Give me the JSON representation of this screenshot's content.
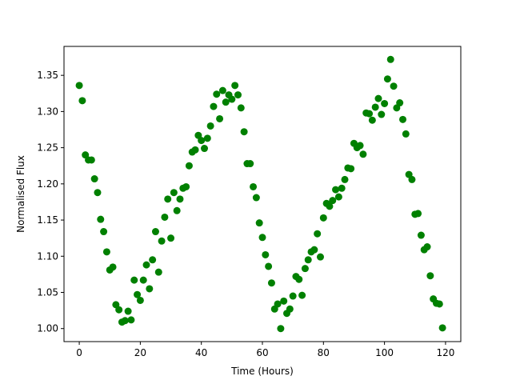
{
  "chart_data": {
    "type": "scatter",
    "xlabel": "Time (Hours)",
    "ylabel": "Normalised Flux",
    "xlim": [
      -5,
      125
    ],
    "ylim": [
      0.982,
      1.39
    ],
    "xticks": [
      0,
      20,
      40,
      60,
      80,
      100,
      120
    ],
    "yticks": [
      1.0,
      1.05,
      1.1,
      1.15,
      1.2,
      1.25,
      1.3,
      1.35
    ],
    "grid": false,
    "marker_color": "#008000",
    "series": [
      {
        "x": [
          0,
          1,
          2,
          3,
          4,
          5,
          6,
          7,
          8,
          9,
          10,
          11,
          12,
          13,
          14,
          15,
          16,
          17,
          18,
          19,
          20,
          21,
          22,
          23,
          24,
          25,
          26,
          27,
          28,
          29,
          30,
          31,
          32,
          33,
          34,
          35,
          36,
          37,
          38,
          39,
          40,
          41,
          42,
          43,
          44,
          45,
          46,
          47,
          48,
          49,
          50,
          51,
          52,
          53,
          54,
          55,
          56,
          57,
          58,
          59,
          60,
          61,
          62,
          63,
          64,
          65,
          66,
          67,
          68,
          69,
          70,
          71,
          72,
          73,
          74,
          75,
          76,
          77,
          78,
          79,
          80,
          81,
          82,
          83,
          84,
          85,
          86,
          87,
          88,
          89,
          90,
          91,
          92,
          93,
          94,
          95,
          96,
          97,
          98,
          99,
          100,
          101,
          102,
          103,
          104,
          105,
          106,
          107,
          108,
          109,
          110,
          111,
          112,
          113,
          114,
          115,
          116,
          117,
          118,
          119
        ],
        "y": [
          1.336,
          1.315,
          1.24,
          1.233,
          1.233,
          1.207,
          1.188,
          1.151,
          1.134,
          1.106,
          1.081,
          1.085,
          1.033,
          1.026,
          1.009,
          1.011,
          1.024,
          1.012,
          1.067,
          1.047,
          1.039,
          1.067,
          1.088,
          1.055,
          1.095,
          1.134,
          1.078,
          1.121,
          1.154,
          1.179,
          1.125,
          1.188,
          1.163,
          1.179,
          1.194,
          1.196,
          1.225,
          1.244,
          1.247,
          1.267,
          1.26,
          1.249,
          1.263,
          1.28,
          1.307,
          1.324,
          1.29,
          1.329,
          1.313,
          1.323,
          1.317,
          1.336,
          1.323,
          1.305,
          1.272,
          1.228,
          1.228,
          1.196,
          1.181,
          1.146,
          1.126,
          1.102,
          1.086,
          1.063,
          1.027,
          1.034,
          1.0,
          1.038,
          1.021,
          1.027,
          1.045,
          1.072,
          1.068,
          1.046,
          1.083,
          1.095,
          1.106,
          1.109,
          1.131,
          1.099,
          1.153,
          1.173,
          1.169,
          1.177,
          1.192,
          1.182,
          1.194,
          1.206,
          1.222,
          1.221,
          1.256,
          1.25,
          1.253,
          1.241,
          1.298,
          1.297,
          1.288,
          1.306,
          1.318,
          1.296,
          1.311,
          1.345,
          1.372,
          1.335,
          1.305,
          1.312,
          1.289,
          1.269,
          1.213,
          1.206,
          1.158,
          1.159,
          1.129,
          1.109,
          1.113,
          1.073,
          1.041,
          1.035,
          1.034,
          1.001
        ]
      }
    ]
  }
}
